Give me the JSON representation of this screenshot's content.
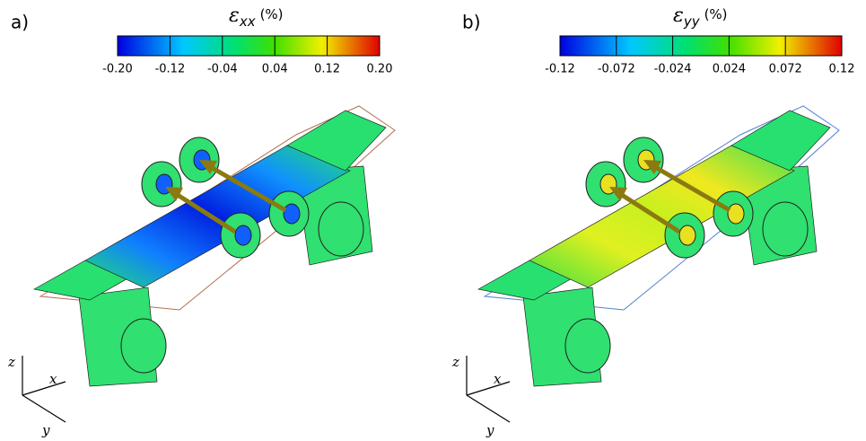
{
  "panels": [
    {
      "label": "a)",
      "symbol": "ε",
      "subscript": "xx",
      "unit": "(%)",
      "colorbar": {
        "lim": [
          -0.2,
          0.2
        ],
        "ticks": [
          {
            "value": -0.2,
            "label": "-0.20"
          },
          {
            "value": -0.12,
            "label": "-0.12"
          },
          {
            "value": -0.04,
            "label": "-0.04"
          },
          {
            "value": 0.04,
            "label": "0.04"
          },
          {
            "value": 0.12,
            "label": "0.12"
          },
          {
            "value": 0.2,
            "label": "0.20"
          }
        ]
      },
      "axes": {
        "z": "z",
        "x": "x",
        "y": "y"
      }
    },
    {
      "label": "b)",
      "symbol": "ε",
      "subscript": "yy",
      "unit": "(%)",
      "colorbar": {
        "lim": [
          -0.12,
          0.12
        ],
        "ticks": [
          {
            "value": -0.12,
            "label": "-0.12"
          },
          {
            "value": -0.072,
            "label": "-0.072"
          },
          {
            "value": -0.024,
            "label": "-0.024"
          },
          {
            "value": 0.024,
            "label": "0.024"
          },
          {
            "value": 0.072,
            "label": "0.072"
          },
          {
            "value": 0.12,
            "label": "0.12"
          }
        ]
      },
      "axes": {
        "z": "z",
        "x": "x",
        "y": "y"
      }
    }
  ]
}
